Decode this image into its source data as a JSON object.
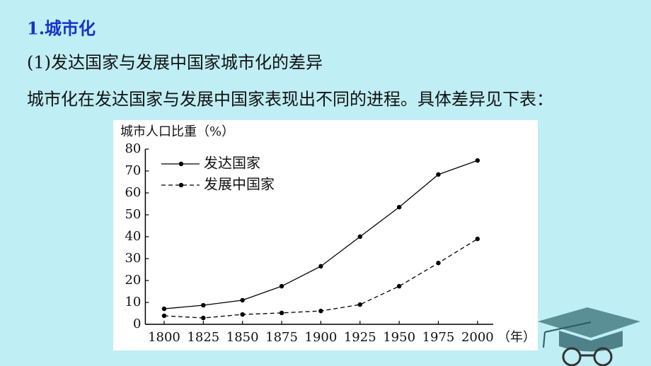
{
  "heading": "1.城市化",
  "subheading": "(1)发达国家与发展中国家城市化的差异",
  "paragraph": "城市化在发达国家与发展中国家表现出不同的进程。具体差异见下表：",
  "chart_data": {
    "type": "line",
    "y_label": "城市人口比重（%）",
    "x_label": "（年）",
    "x": [
      1800,
      1825,
      1850,
      1875,
      1900,
      1925,
      1950,
      1975,
      2000
    ],
    "series": [
      {
        "name": "发达国家",
        "color": "#000000",
        "line_style": "solid",
        "values": [
          7.1,
          8.7,
          11,
          17.4,
          26.5,
          40,
          53.5,
          68.4,
          74.8
        ]
      },
      {
        "name": "发展中国家",
        "color": "#000000",
        "line_style": "dashed",
        "values": [
          3.9,
          2.9,
          4.5,
          5.2,
          6.1,
          9,
          17.4,
          28,
          39
        ]
      }
    ],
    "xlim": [
      1788,
      2010
    ],
    "xticks": [
      1800,
      1825,
      1850,
      1875,
      1900,
      1925,
      1950,
      1975,
      2000
    ],
    "ylim": [
      0,
      80
    ],
    "yticks": [
      0,
      10,
      20,
      30,
      40,
      50,
      60,
      70,
      80
    ],
    "grid": false,
    "legend": "top-left"
  }
}
